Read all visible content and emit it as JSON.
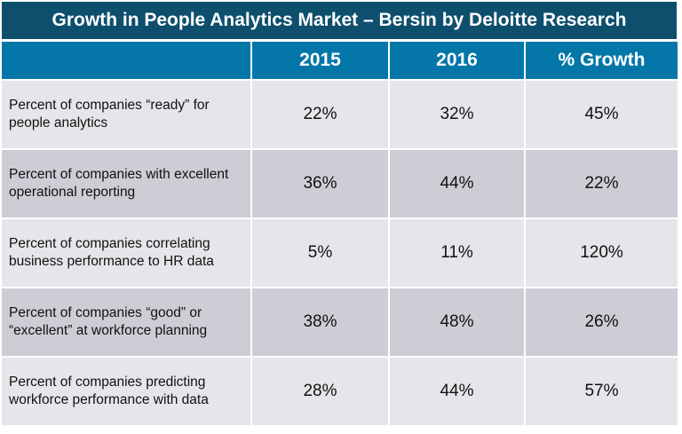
{
  "title": "Growth in People Analytics Market – Bersin by Deloitte Research",
  "colors": {
    "title_bg": "#0e4f6e",
    "header_bg": "#0477a8",
    "row_light": "#e6e6ea",
    "row_dark": "#cdcdd6"
  },
  "chart_data": {
    "type": "table",
    "title": "Growth in People Analytics Market – Bersin by Deloitte Research",
    "columns": [
      "",
      "2015",
      "2016",
      "% Growth"
    ],
    "rows": [
      {
        "label": "Percent of companies “ready” for people analytics",
        "y2015": "22%",
        "y2016": "32%",
        "growth": "45%"
      },
      {
        "label": "Percent of companies with excellent operational reporting",
        "y2015": "36%",
        "y2016": "44%",
        "growth": "22%"
      },
      {
        "label": "Percent of companies correlating business performance to HR data",
        "y2015": "5%",
        "y2016": "11%",
        "growth": "120%"
      },
      {
        "label": "Percent of companies “good” or “excellent” at workforce planning",
        "y2015": "38%",
        "y2016": "48%",
        "growth": "26%"
      },
      {
        "label": "Percent of companies predicting workforce performance with data",
        "y2015": "28%",
        "y2016": "44%",
        "growth": "57%"
      }
    ]
  }
}
